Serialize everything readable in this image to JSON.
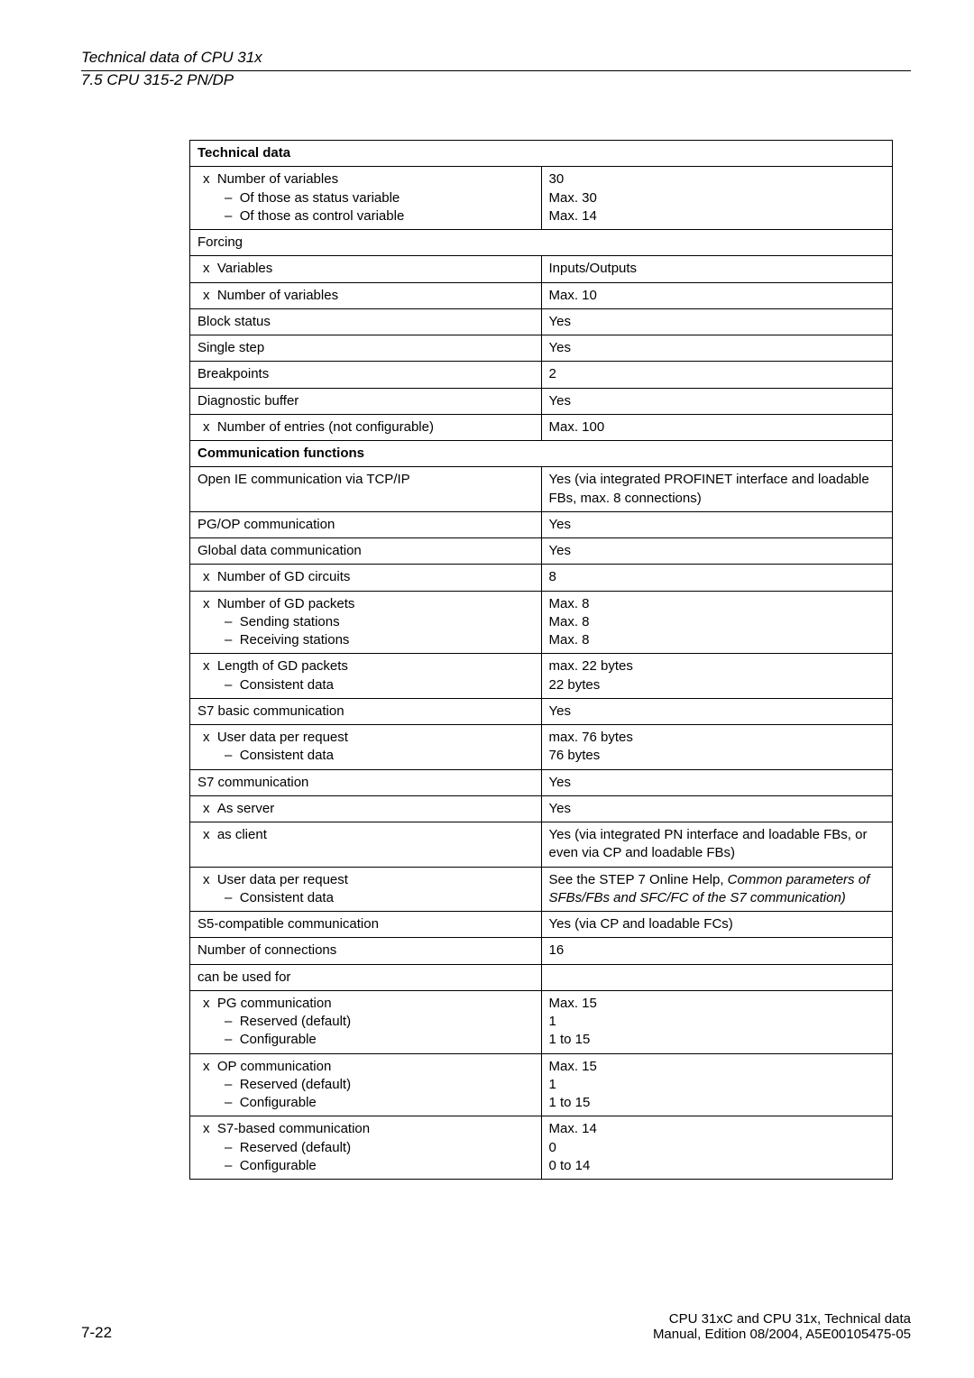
{
  "header": {
    "title": "Technical data of CPU 31x",
    "subtitle": "7.5 CPU 315-2 PN/DP"
  },
  "table": {
    "heading": "Technical data",
    "rows": [
      {
        "left_items": [
          {
            "lvl": 2,
            "bullet": "x",
            "text": "Number of variables"
          },
          {
            "lvl": 3,
            "bullet": "dash",
            "text": "Of those as status variable"
          },
          {
            "lvl": 3,
            "bullet": "dash",
            "text": "Of those as control variable"
          }
        ],
        "right_items": [
          {
            "text": "30"
          },
          {
            "text": "Max. 30"
          },
          {
            "text": "Max. 14"
          }
        ]
      },
      {
        "span": true,
        "left_items": [
          {
            "lvl": 1,
            "text": "Forcing"
          }
        ]
      },
      {
        "left_items": [
          {
            "lvl": 2,
            "bullet": "x",
            "text": "Variables"
          }
        ],
        "right_items": [
          {
            "text": "Inputs/Outputs"
          }
        ]
      },
      {
        "left_items": [
          {
            "lvl": 2,
            "bullet": "x",
            "text": "Number of variables"
          }
        ],
        "right_items": [
          {
            "text": "Max. 10"
          }
        ]
      },
      {
        "left_items": [
          {
            "lvl": 1,
            "text": "Block status"
          }
        ],
        "right_items": [
          {
            "text": "Yes"
          }
        ]
      },
      {
        "left_items": [
          {
            "lvl": 1,
            "text": "Single step"
          }
        ],
        "right_items": [
          {
            "text": "Yes"
          }
        ]
      },
      {
        "left_items": [
          {
            "lvl": 1,
            "text": "Breakpoints"
          }
        ],
        "right_items": [
          {
            "text": "2"
          }
        ]
      },
      {
        "left_items": [
          {
            "lvl": 1,
            "text": "Diagnostic buffer"
          }
        ],
        "right_items": [
          {
            "text": "Yes"
          }
        ]
      },
      {
        "left_items": [
          {
            "lvl": 2,
            "bullet": "x",
            "text": "Number of entries (not configurable)"
          }
        ],
        "right_items": [
          {
            "text": "Max. 100"
          }
        ]
      },
      {
        "span": true,
        "section": true,
        "left_items": [
          {
            "lvl": 1,
            "text": "Communication functions"
          }
        ]
      },
      {
        "left_items": [
          {
            "lvl": 1,
            "text": "Open IE communication via TCP/IP"
          }
        ],
        "right_items": [
          {
            "text": "Yes (via integrated PROFINET interface and loadable FBs, max. 8 connections)"
          }
        ]
      },
      {
        "left_items": [
          {
            "lvl": 1,
            "text": "PG/OP communication"
          }
        ],
        "right_items": [
          {
            "text": "Yes"
          }
        ]
      },
      {
        "left_items": [
          {
            "lvl": 1,
            "text": "Global data communication"
          }
        ],
        "right_items": [
          {
            "text": "Yes"
          }
        ]
      },
      {
        "left_items": [
          {
            "lvl": 2,
            "bullet": "x",
            "text": "Number of GD circuits"
          }
        ],
        "right_items": [
          {
            "text": "8"
          }
        ]
      },
      {
        "left_items": [
          {
            "lvl": 2,
            "bullet": "x",
            "text": "Number of GD packets"
          },
          {
            "lvl": 3,
            "bullet": "dash",
            "text": "Sending stations"
          },
          {
            "lvl": 3,
            "bullet": "dash",
            "text": "Receiving stations"
          }
        ],
        "right_items": [
          {
            "text": "Max. 8"
          },
          {
            "text": "Max. 8"
          },
          {
            "text": "Max. 8"
          }
        ]
      },
      {
        "left_items": [
          {
            "lvl": 2,
            "bullet": "x",
            "text": "Length of GD packets"
          },
          {
            "lvl": 3,
            "bullet": "dash",
            "text": "Consistent data"
          }
        ],
        "right_items": [
          {
            "text": "max. 22 bytes"
          },
          {
            "text": "22 bytes"
          }
        ]
      },
      {
        "left_items": [
          {
            "lvl": 1,
            "text": "S7 basic communication"
          }
        ],
        "right_items": [
          {
            "text": "Yes"
          }
        ]
      },
      {
        "left_items": [
          {
            "lvl": 2,
            "bullet": "x",
            "text": "User data per request"
          },
          {
            "lvl": 3,
            "bullet": "dash",
            "text": "Consistent data"
          }
        ],
        "right_items": [
          {
            "text": "max. 76 bytes"
          },
          {
            "text": "76 bytes"
          }
        ]
      },
      {
        "left_items": [
          {
            "lvl": 1,
            "text": "S7 communication"
          }
        ],
        "right_items": [
          {
            "text": "Yes"
          }
        ]
      },
      {
        "left_items": [
          {
            "lvl": 2,
            "bullet": "x",
            "text": "As server"
          }
        ],
        "right_items": [
          {
            "text": "Yes"
          }
        ]
      },
      {
        "left_items": [
          {
            "lvl": 2,
            "bullet": "x",
            "text": "as client"
          }
        ],
        "right_items": [
          {
            "text": "Yes (via integrated PN interface and loadable FBs, or even via CP and loadable FBs)"
          }
        ]
      },
      {
        "left_items": [
          {
            "lvl": 2,
            "bullet": "x",
            "text": "User data per request"
          },
          {
            "lvl": 3,
            "bullet": "dash",
            "text": "Consistent data"
          }
        ],
        "right_items": [
          {
            "html": "See the STEP 7 Online Help, <span class=\"italic\">Common parameters of SFBs/FBs and SFC/FC of the S7 communication)</span>"
          }
        ]
      },
      {
        "left_items": [
          {
            "lvl": 1,
            "text": "S5-compatible communication"
          }
        ],
        "right_items": [
          {
            "text": "Yes (via CP and loadable FCs)"
          }
        ]
      },
      {
        "left_items": [
          {
            "lvl": 1,
            "text": "Number of connections"
          }
        ],
        "right_items": [
          {
            "text": "16"
          }
        ]
      },
      {
        "left_items": [
          {
            "lvl": 1,
            "text": "can be used for"
          }
        ],
        "right_items": [
          {
            "text": ""
          }
        ]
      },
      {
        "left_items": [
          {
            "lvl": 2,
            "bullet": "x",
            "text": "PG communication"
          },
          {
            "lvl": 3,
            "bullet": "dash",
            "text": "Reserved (default)"
          },
          {
            "lvl": 3,
            "bullet": "dash",
            "text": "Configurable"
          }
        ],
        "right_items": [
          {
            "text": "Max. 15"
          },
          {
            "text": "1"
          },
          {
            "text": "1 to 15"
          }
        ]
      },
      {
        "left_items": [
          {
            "lvl": 2,
            "bullet": "x",
            "text": "OP communication"
          },
          {
            "lvl": 3,
            "bullet": "dash",
            "text": "Reserved (default)"
          },
          {
            "lvl": 3,
            "bullet": "dash",
            "text": "Configurable"
          }
        ],
        "right_items": [
          {
            "text": "Max. 15"
          },
          {
            "text": "1"
          },
          {
            "text": "1 to 15"
          }
        ]
      },
      {
        "left_items": [
          {
            "lvl": 2,
            "bullet": "x",
            "text": "S7-based communication"
          },
          {
            "lvl": 3,
            "bullet": "dash",
            "text": "Reserved (default)"
          },
          {
            "lvl": 3,
            "bullet": "dash",
            "text": "Configurable"
          }
        ],
        "right_items": [
          {
            "text": "Max. 14"
          },
          {
            "text": "0"
          },
          {
            "text": "0 to 14"
          }
        ]
      }
    ]
  },
  "footer": {
    "page_number": "7-22",
    "right_line1": "CPU 31xC and CPU 31x, Technical data",
    "right_line2": "Manual, Edition 08/2004, A5E00105475-05"
  },
  "colors": {
    "text": "#000000",
    "background": "#ffffff",
    "border": "#000000"
  }
}
